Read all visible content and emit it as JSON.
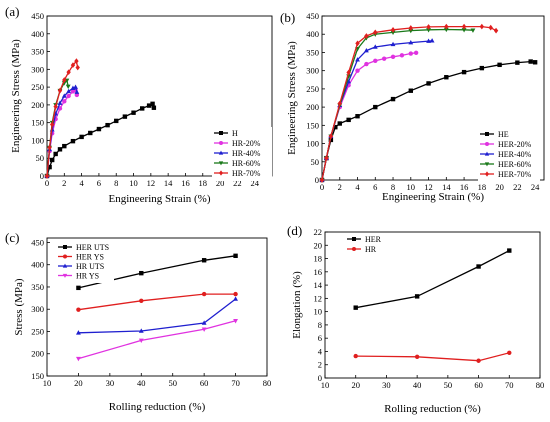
{
  "chart_data": [
    {
      "id": "a",
      "panel_label": "(a)",
      "type": "line",
      "xlabel": "Engineering Strain (%)",
      "ylabel": "Engineering Stress (MPa)",
      "xlim": [
        0,
        26
      ],
      "ylim": [
        0,
        450
      ],
      "xticks": [
        0,
        2,
        4,
        6,
        8,
        10,
        12,
        14,
        16,
        18,
        20,
        22,
        24
      ],
      "yticks": [
        0,
        50,
        100,
        150,
        200,
        250,
        300,
        350,
        400,
        450
      ],
      "legend_position": "bottom-right",
      "series": [
        {
          "name": "H",
          "color": "#000000",
          "marker": "square",
          "x": [
            0,
            0.3,
            0.6,
            1,
            1.5,
            2,
            3,
            4,
            5,
            6,
            7,
            8,
            9,
            10,
            11,
            11.8,
            12.2,
            12.35
          ],
          "y": [
            0,
            25,
            45,
            62,
            75,
            84,
            98,
            110,
            121,
            132,
            143,
            155,
            167,
            178,
            190,
            198,
            203,
            192
          ]
        },
        {
          "name": "HR-20%",
          "color": "#e032e0",
          "marker": "circle",
          "x": [
            0,
            0.3,
            0.6,
            1,
            1.5,
            2,
            2.5,
            3,
            3.3,
            3.45
          ],
          "y": [
            0,
            70,
            120,
            160,
            190,
            210,
            225,
            238,
            242,
            228
          ]
        },
        {
          "name": "HR-40%",
          "color": "#1f1fcf",
          "marker": "triangle-up",
          "x": [
            0,
            0.3,
            0.6,
            1,
            1.5,
            2,
            2.5,
            3,
            3.3,
            3.45
          ],
          "y": [
            0,
            75,
            130,
            175,
            205,
            225,
            238,
            247,
            250,
            236
          ]
        },
        {
          "name": "HR-60%",
          "color": "#1a7a1a",
          "marker": "triangle-down",
          "x": [
            0,
            0.3,
            0.6,
            1,
            1.5,
            2,
            2.3,
            2.45
          ],
          "y": [
            0,
            80,
            150,
            200,
            240,
            262,
            269,
            252
          ]
        },
        {
          "name": "HR-70%",
          "color": "#e01f1f",
          "marker": "diamond",
          "x": [
            0,
            0.3,
            0.6,
            1,
            1.5,
            2,
            2.5,
            3,
            3.4,
            3.55
          ],
          "y": [
            0,
            80,
            145,
            195,
            240,
            270,
            292,
            312,
            323,
            305
          ]
        }
      ]
    },
    {
      "id": "b",
      "panel_label": "(b)",
      "type": "line",
      "xlabel": "Engineering Strain (%)",
      "ylabel": "Engineering Stress (MPa)",
      "xlim": [
        0,
        25
      ],
      "ylim": [
        0,
        450
      ],
      "xticks": [
        0,
        2,
        4,
        6,
        8,
        10,
        12,
        14,
        16,
        18,
        20,
        22,
        24
      ],
      "yticks": [
        0,
        50,
        100,
        150,
        200,
        250,
        300,
        350,
        400,
        450
      ],
      "legend_position": "bottom-right",
      "series": [
        {
          "name": "HE",
          "color": "#000000",
          "marker": "square",
          "x": [
            0,
            0.5,
            1,
            1.5,
            2,
            3,
            4,
            6,
            8,
            10,
            12,
            14,
            16,
            18,
            20,
            22,
            23.5,
            24
          ],
          "y": [
            0,
            60,
            110,
            145,
            155,
            165,
            175,
            200,
            222,
            245,
            265,
            282,
            296,
            307,
            316,
            322,
            325,
            323
          ]
        },
        {
          "name": "HER-20%",
          "color": "#e032e0",
          "marker": "circle",
          "x": [
            0,
            0.5,
            1,
            2,
            3,
            4,
            5,
            6,
            7,
            8,
            9,
            10,
            10.6
          ],
          "y": [
            0,
            60,
            120,
            200,
            260,
            300,
            318,
            327,
            333,
            338,
            342,
            347,
            349
          ]
        },
        {
          "name": "HER-40%",
          "color": "#1f1fcf",
          "marker": "triangle-up",
          "x": [
            0,
            0.5,
            1,
            2,
            3,
            4,
            5,
            6,
            8,
            10,
            12,
            12.4
          ],
          "y": [
            0,
            60,
            120,
            205,
            270,
            330,
            355,
            365,
            372,
            377,
            381,
            382
          ]
        },
        {
          "name": "HER-60%",
          "color": "#1a7a1a",
          "marker": "triangle-down",
          "x": [
            0,
            0.5,
            1,
            2,
            3,
            4,
            5,
            6,
            8,
            10,
            12,
            14,
            16,
            17
          ],
          "y": [
            0,
            60,
            120,
            205,
            285,
            360,
            390,
            400,
            405,
            410,
            412,
            413,
            412,
            411
          ]
        },
        {
          "name": "HER-70%",
          "color": "#e01f1f",
          "marker": "diamond",
          "x": [
            0,
            0.5,
            1,
            2,
            3,
            4,
            5,
            6,
            8,
            10,
            12,
            14,
            16,
            18,
            19,
            19.6
          ],
          "y": [
            0,
            60,
            120,
            210,
            295,
            375,
            395,
            405,
            412,
            417,
            420,
            421,
            421,
            421,
            418,
            410
          ]
        }
      ]
    },
    {
      "id": "c",
      "panel_label": "(c)",
      "type": "line",
      "xlabel": "Rolling reduction (%)",
      "ylabel": "Stress (MPa)",
      "xlim": [
        10,
        80
      ],
      "ylim": [
        150,
        460
      ],
      "xticks": [
        10,
        20,
        30,
        40,
        50,
        60,
        70,
        80
      ],
      "yticks": [
        150,
        200,
        250,
        300,
        350,
        400,
        450
      ],
      "legend_position": "top-left",
      "series": [
        {
          "name": "HER UTS",
          "color": "#000000",
          "marker": "square",
          "x": [
            20,
            40,
            60,
            70
          ],
          "y": [
            348,
            381,
            410,
            420
          ]
        },
        {
          "name": "HER YS",
          "color": "#e01f1f",
          "marker": "circle",
          "x": [
            20,
            40,
            60,
            70
          ],
          "y": [
            299,
            319,
            334,
            334
          ]
        },
        {
          "name": "HR UTS",
          "color": "#1f1fcf",
          "marker": "triangle-up",
          "x": [
            20,
            40,
            60,
            70
          ],
          "y": [
            247,
            251,
            269,
            323
          ]
        },
        {
          "name": "HR YS",
          "color": "#e032e0",
          "marker": "triangle-down",
          "x": [
            20,
            40,
            60,
            70
          ],
          "y": [
            189,
            230,
            255,
            274
          ]
        }
      ]
    },
    {
      "id": "d",
      "panel_label": "(d)",
      "type": "line",
      "xlabel": "Rolling reduction (%)",
      "ylabel": "Elongation (%)",
      "xlim": [
        10,
        80
      ],
      "ylim": [
        0,
        22
      ],
      "xticks": [
        10,
        20,
        30,
        40,
        50,
        60,
        70,
        80
      ],
      "yticks": [
        0,
        2,
        4,
        6,
        8,
        10,
        12,
        14,
        16,
        18,
        20,
        22
      ],
      "legend_position": "top-left",
      "series": [
        {
          "name": "HER",
          "color": "#000000",
          "marker": "square",
          "x": [
            20,
            40,
            60,
            70
          ],
          "y": [
            10.6,
            12.3,
            16.8,
            19.2
          ]
        },
        {
          "name": "HR",
          "color": "#e01f1f",
          "marker": "circle",
          "x": [
            20,
            40,
            60,
            70
          ],
          "y": [
            3.3,
            3.2,
            2.6,
            3.8
          ]
        }
      ]
    }
  ]
}
